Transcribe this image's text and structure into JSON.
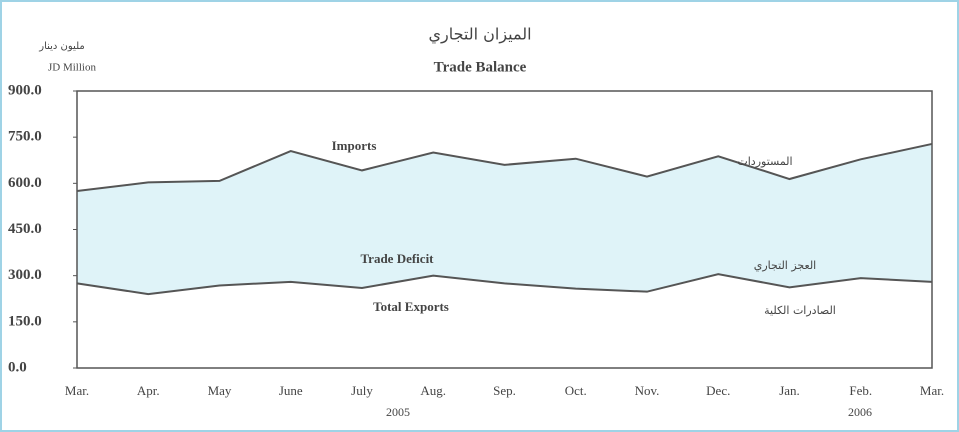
{
  "chart_data": {
    "type": "line",
    "title": "الميزان التجاري",
    "subtitle": "Trade Balance",
    "y_label": "JD Million",
    "y_label_ar": "مليون دينار",
    "categories": [
      "Mar.",
      "Apr.",
      "May",
      "June",
      "July",
      "Aug.",
      "Sep.",
      "Oct.",
      "Nov.",
      "Dec.",
      "Jan.",
      "Feb.",
      "Mar."
    ],
    "years": [
      "2005",
      "2006"
    ],
    "series": [
      {
        "name": "Imports",
        "color": "#555555",
        "values": [
          575,
          603,
          608,
          705,
          642,
          700,
          660,
          680,
          622,
          688,
          614,
          678,
          728
        ]
      },
      {
        "name": "Total Exports",
        "color": "#555555",
        "values": [
          275,
          240,
          268,
          280,
          260,
          300,
          275,
          258,
          248,
          305,
          262,
          292,
          280
        ]
      }
    ],
    "annotations": [
      "المستوردات",
      "Trade Deficit",
      "العجز التجاري",
      "الصادرات الكلية"
    ],
    "fill_color": "#dff3f8",
    "ylim": [
      0,
      900
    ],
    "yticks": [
      {
        "value": 0,
        "label": "0.0"
      },
      {
        "value": 150,
        "label": "150.0"
      },
      {
        "value": 300,
        "label": "300.0"
      },
      {
        "value": 450,
        "label": "450.0"
      },
      {
        "value": 600,
        "label": "600.0"
      },
      {
        "value": 750,
        "label": "750.0"
      },
      {
        "value": 900,
        "label": "900.0"
      }
    ]
  }
}
